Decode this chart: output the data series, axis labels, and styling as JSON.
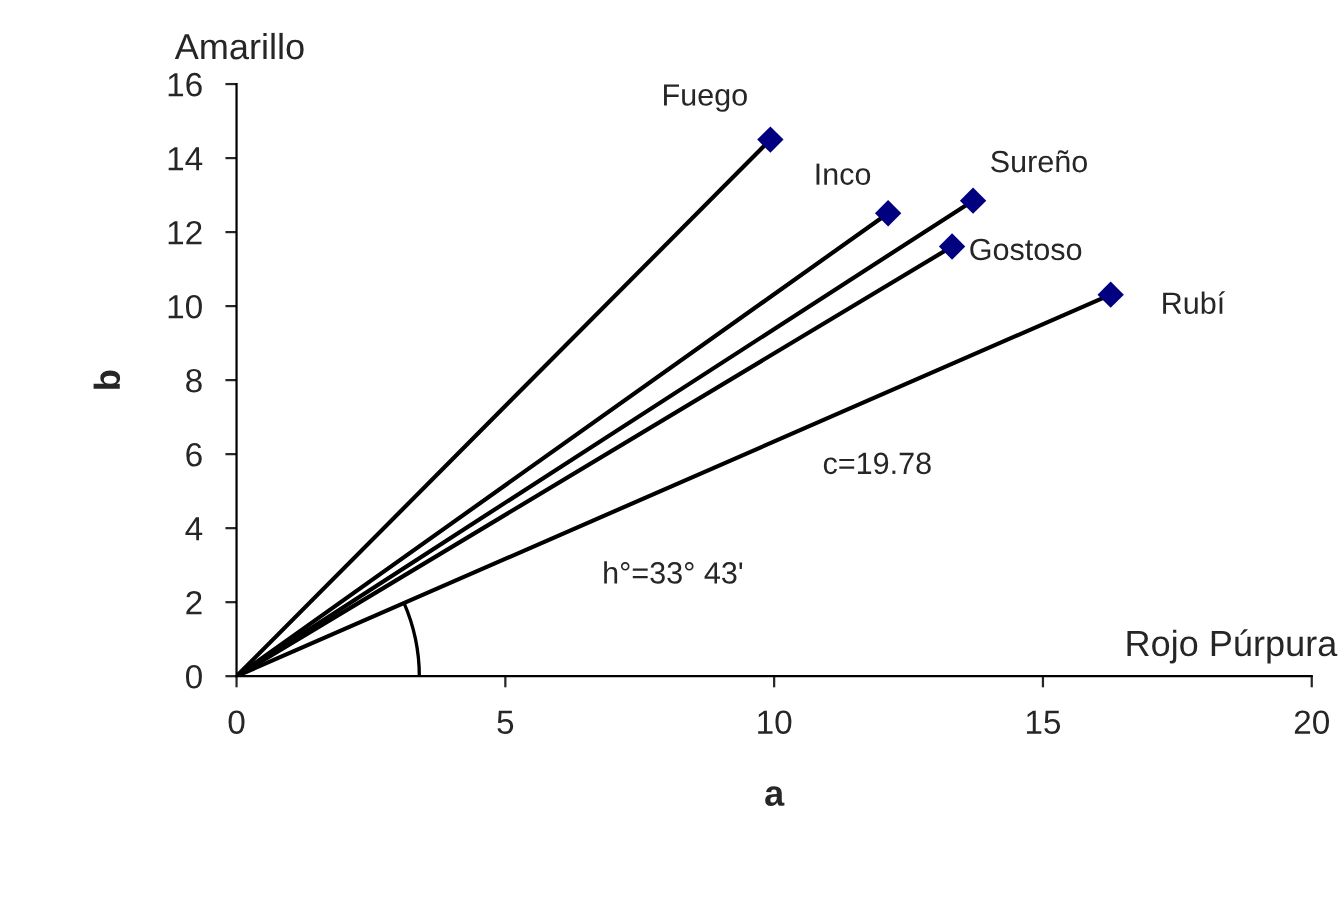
{
  "chart_data": {
    "type": "scatter",
    "xlabel": "a",
    "ylabel": "b",
    "xlim": [
      0,
      20
    ],
    "xticks": [
      0,
      5,
      10,
      15,
      20
    ],
    "ylim": [
      0,
      16
    ],
    "yticks": [
      0,
      2,
      4,
      6,
      8,
      10,
      12,
      14,
      16
    ],
    "grid": false,
    "legend": false,
    "series": [
      {
        "type": "line",
        "color": "#000000",
        "marker": "none",
        "x": [
          0,
          9.93
        ],
        "values": [
          0,
          14.5
        ]
      },
      {
        "type": "line",
        "color": "#000000",
        "marker": "none",
        "x": [
          0,
          12.12
        ],
        "values": [
          0,
          12.51
        ]
      },
      {
        "type": "line",
        "color": "#000000",
        "marker": "none",
        "x": [
          0,
          13.7
        ],
        "values": [
          0,
          12.85
        ]
      },
      {
        "type": "line",
        "color": "#000000",
        "marker": "none",
        "x": [
          0,
          13.31
        ],
        "values": [
          0,
          11.61
        ]
      },
      {
        "type": "line",
        "color": "#000000",
        "marker": "none",
        "x": [
          0,
          16.26
        ],
        "values": [
          0,
          10.31
        ]
      },
      {
        "color": "#000080",
        "marker": "diamond",
        "x": [
          9.93,
          12.12,
          13.7,
          13.31,
          16.26
        ],
        "values": [
          14.5,
          12.51,
          12.85,
          11.61,
          10.31
        ]
      }
    ],
    "annotations": [
      {
        "text": "Fuego",
        "x": 9.93,
        "y": 14.5
      },
      {
        "text": "Inco",
        "x": 12.12,
        "y": 12.51
      },
      {
        "text": "Sureño",
        "x": 13.7,
        "y": 12.85
      },
      {
        "text": "Gostoso",
        "x": 13.31,
        "y": 11.61
      },
      {
        "text": "Rubí",
        "x": 16.26,
        "y": 10.31
      },
      "c=19.78",
      "h°=33° 43'",
      "Amarillo",
      "Rojo Púrpura"
    ]
  }
}
